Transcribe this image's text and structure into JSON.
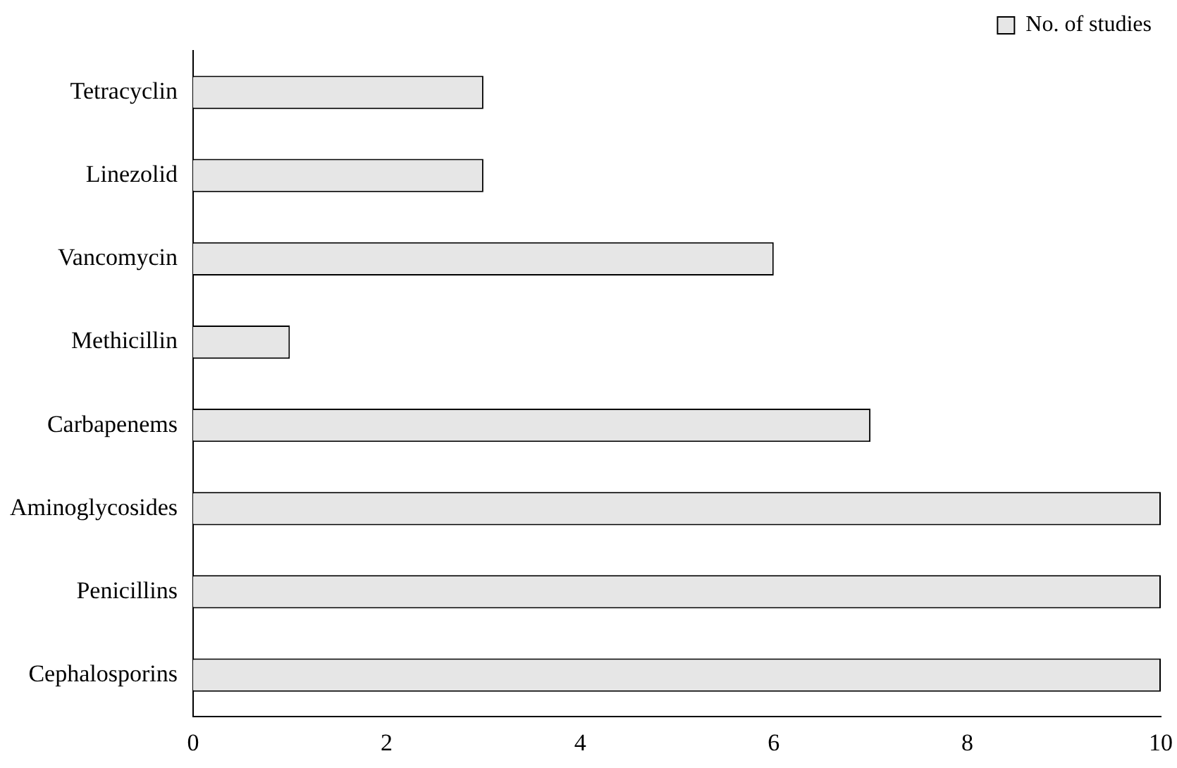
{
  "chart_data": {
    "type": "bar",
    "orientation": "horizontal",
    "categories": [
      "Tetracyclin",
      "Linezolid",
      "Vancomycin",
      "Methicillin",
      "Carbapenems",
      "Aminoglycosides",
      "Penicillins",
      "Cephalosporins"
    ],
    "series": [
      {
        "name": "No. of studies",
        "color": "#e6e6e6",
        "values": [
          3,
          3,
          6,
          1,
          7,
          10,
          10,
          10
        ]
      }
    ],
    "xlim": [
      0,
      10
    ],
    "xticks": [
      0,
      2,
      4,
      6,
      8,
      10
    ],
    "grid": false,
    "legend": "top right"
  }
}
